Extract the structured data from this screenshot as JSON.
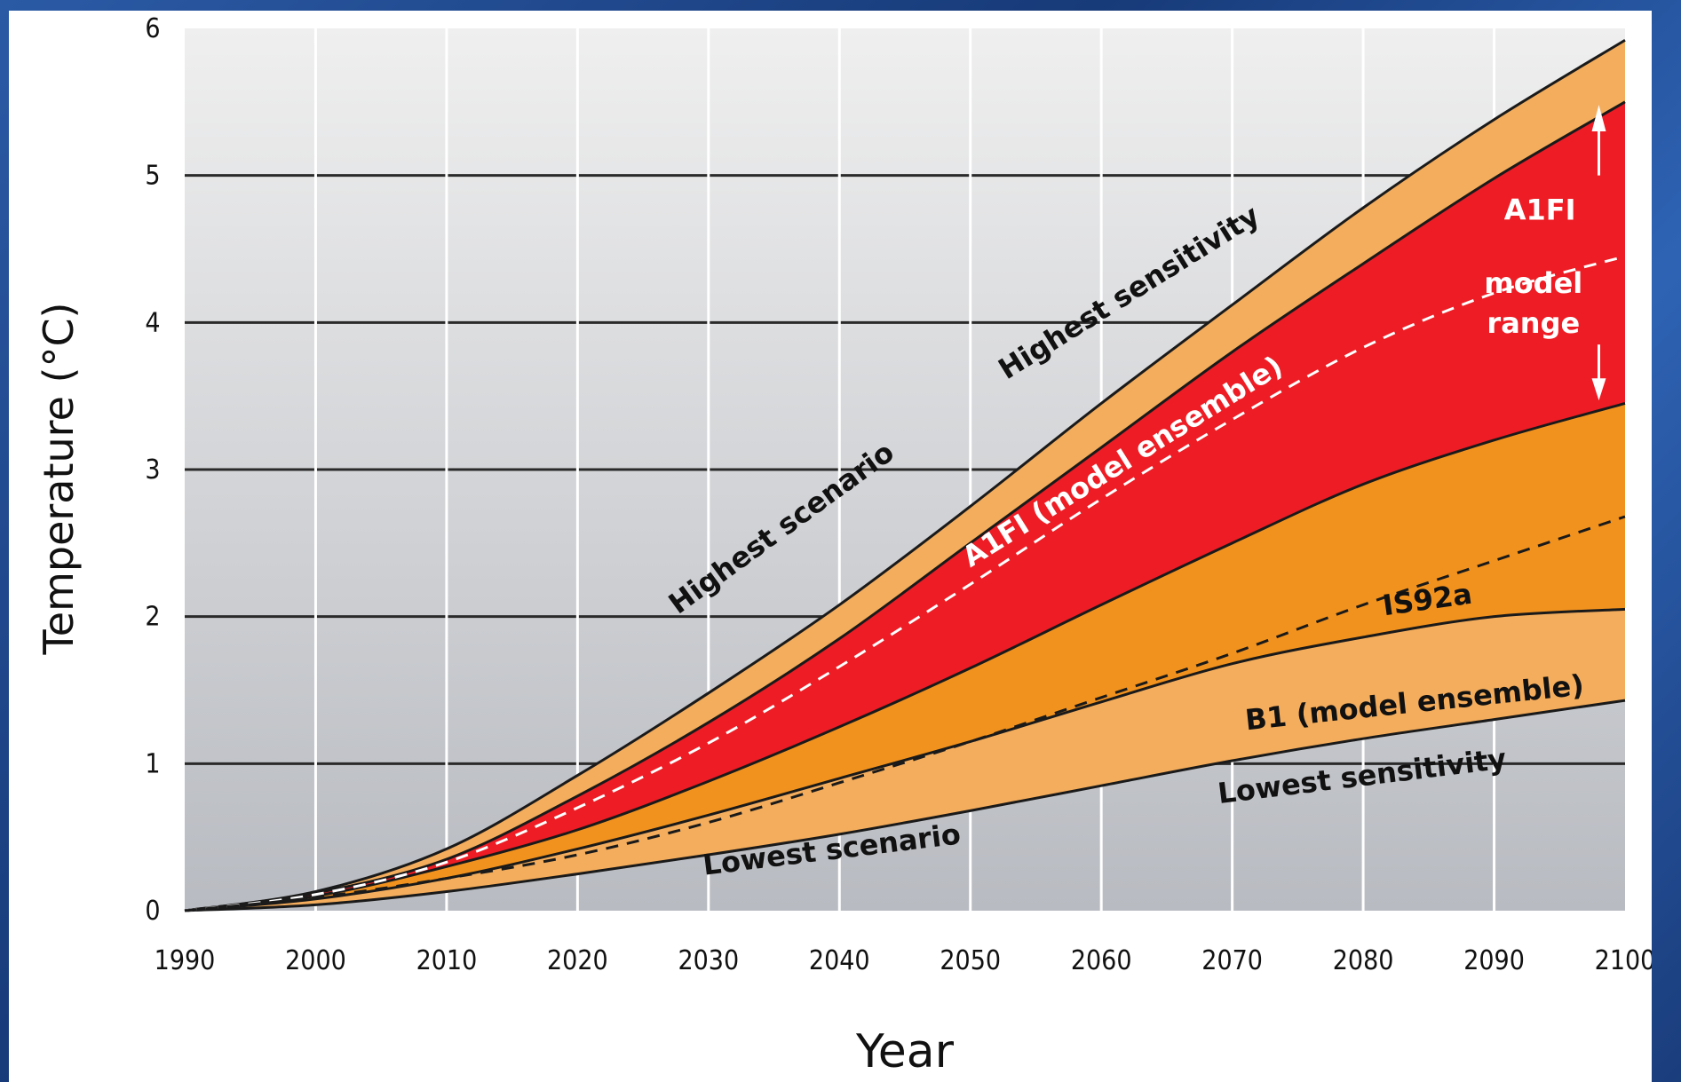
{
  "chart_data": {
    "type": "area",
    "xlabel": "Year",
    "ylabel": "Temperature (°C)",
    "xlim": [
      1990,
      2100
    ],
    "ylim": [
      0,
      6
    ],
    "x_ticks": [
      1990,
      2000,
      2010,
      2020,
      2030,
      2040,
      2050,
      2060,
      2070,
      2080,
      2090,
      2100
    ],
    "y_ticks": [
      0,
      1,
      2,
      3,
      4,
      5,
      6
    ],
    "grid": true,
    "x": [
      1990,
      2000,
      2010,
      2020,
      2030,
      2040,
      2050,
      2060,
      2070,
      2080,
      2090,
      2100
    ],
    "series": [
      {
        "values": [
          0,
          0.13,
          0.42,
          0.92,
          1.48,
          2.08,
          2.75,
          3.45,
          4.12,
          4.78,
          5.38,
          5.92
        ]
      },
      {
        "values": [
          0,
          0.12,
          0.35,
          0.78,
          1.28,
          1.85,
          2.5,
          3.15,
          3.8,
          4.4,
          4.98,
          5.5
        ]
      },
      {
        "values": [
          0,
          0.1,
          0.3,
          0.55,
          0.88,
          1.25,
          1.65,
          2.08,
          2.5,
          2.9,
          3.2,
          3.45
        ]
      },
      {
        "values": [
          0,
          0.08,
          0.22,
          0.42,
          0.65,
          0.9,
          1.15,
          1.42,
          1.68,
          1.86,
          2.0,
          2.05
        ]
      },
      {
        "values": [
          0,
          0.04,
          0.13,
          0.25,
          0.38,
          0.52,
          0.68,
          0.85,
          1.02,
          1.17,
          1.3,
          1.43
        ]
      },
      {
        "name": "A1FI (model ensemble)",
        "style": "dashed",
        "values": [
          0,
          0.11,
          0.33,
          0.7,
          1.14,
          1.66,
          2.22,
          2.8,
          3.34,
          3.83,
          4.2,
          4.45
        ]
      },
      {
        "name": "IS92a",
        "style": "dashed",
        "values": [
          0,
          0.09,
          0.22,
          0.38,
          0.6,
          0.87,
          1.15,
          1.45,
          1.75,
          2.08,
          2.38,
          2.68
        ]
      }
    ],
    "bands": [
      {
        "between": [
          0,
          1
        ],
        "color": "#f4ad5c"
      },
      {
        "between": [
          1,
          2
        ],
        "color": "#ee1c24"
      },
      {
        "between": [
          2,
          3
        ],
        "color": "#f2921e"
      },
      {
        "between": [
          3,
          4
        ],
        "color": "#f4ad5c"
      }
    ],
    "annotations": [
      {
        "text": "Highest scenario",
        "color": "#111111"
      },
      {
        "text": "Highest sensitivity",
        "color": "#111111"
      },
      {
        "text": "A1FI (model ensemble)",
        "color": "#ffffff"
      },
      {
        "text": "A1FI",
        "color": "#ffffff"
      },
      {
        "text": "model",
        "color": "#ffffff"
      },
      {
        "text": "range",
        "color": "#ffffff"
      },
      {
        "text": "IS92a",
        "color": "#111111"
      },
      {
        "text": "B1 (model ensemble)",
        "color": "#111111"
      },
      {
        "text": "Lowest scenario",
        "color": "#111111"
      },
      {
        "text": "Lowest sensitivity",
        "color": "#111111"
      }
    ]
  },
  "colors": {
    "frame_blue": "#1b3f7a",
    "plot_gradient_top": "#eeeeee",
    "plot_gradient_bottom": "#b9bcc2",
    "gridline": "#2a2a2a"
  }
}
